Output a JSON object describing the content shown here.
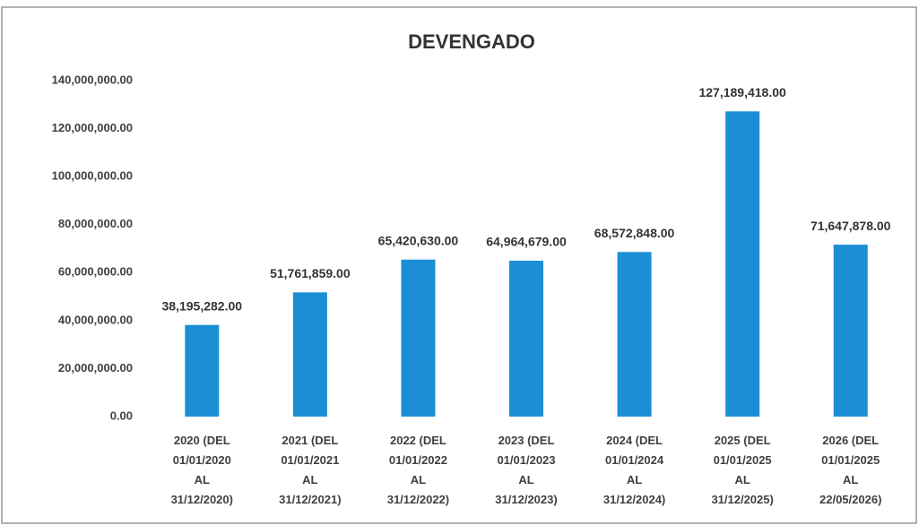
{
  "chart_data": {
    "type": "bar",
    "title": "DEVENGADO",
    "categories": [
      [
        "2020 (DEL",
        "01/01/2020",
        "AL",
        "31/12/2020)"
      ],
      [
        "2021 (DEL",
        "01/01/2021",
        "AL",
        "31/12/2021)"
      ],
      [
        "2022 (DEL",
        "01/01/2022",
        "AL",
        "31/12/2022)"
      ],
      [
        "2023 (DEL",
        "01/01/2023",
        "AL",
        "31/12/2023)"
      ],
      [
        "2024 (DEL",
        "01/01/2024",
        "AL",
        "31/12/2024)"
      ],
      [
        "2025 (DEL",
        "01/01/2025",
        "AL",
        "31/12/2025)"
      ],
      [
        "2026 (DEL",
        "01/01/2025",
        "AL",
        "22/05/2026)"
      ]
    ],
    "values": [
      38195282,
      51761859,
      65420630,
      64964679,
      68572848,
      127189418,
      71647878
    ],
    "value_labels": [
      "38,195,282.00",
      "51,761,859.00",
      "65,420,630.00",
      "64,964,679.00",
      "68,572,848.00",
      "127,189,418.00",
      "71,647,878.00"
    ],
    "color": "#1c8ed6",
    "ylim": [
      0,
      140000000
    ],
    "yticks": [
      {
        "value": 0,
        "label": "0.00"
      },
      {
        "value": 20000000,
        "label": "20,000,000.00"
      },
      {
        "value": 40000000,
        "label": "40,000,000.00"
      },
      {
        "value": 60000000,
        "label": "60,000,000.00"
      },
      {
        "value": 80000000,
        "label": "80,000,000.00"
      },
      {
        "value": 100000000,
        "label": "100,000,000.00"
      },
      {
        "value": 120000000,
        "label": "120,000,000.00"
      },
      {
        "value": 140000000,
        "label": "140,000,000.00"
      }
    ],
    "grid": false
  }
}
